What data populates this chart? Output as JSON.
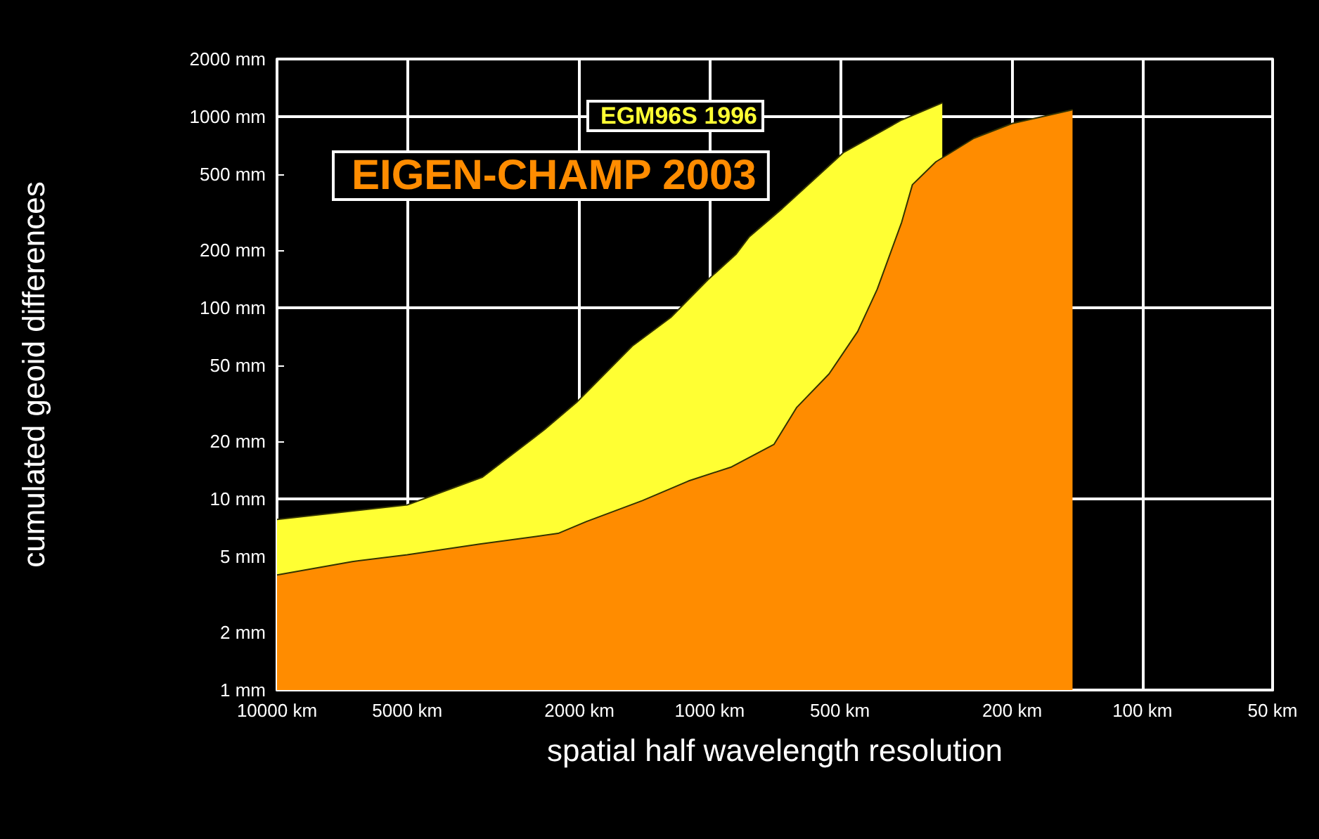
{
  "chart_data": {
    "type": "area",
    "xlabel": "spatial half wavelength resolution",
    "ylabel": "cumulated geoid differences",
    "log": "xy",
    "grid": true,
    "legend": "top left",
    "xlim": [
      10000,
      50
    ],
    "ylim": [
      1,
      2000
    ],
    "xticks": [
      {
        "value": 10000,
        "label": "10000 km"
      },
      {
        "value": 5000,
        "label": "5000 km"
      },
      {
        "value": 2000,
        "label": "2000 km"
      },
      {
        "value": 1000,
        "label": "1000 km"
      },
      {
        "value": 500,
        "label": "500 km"
      },
      {
        "value": 200,
        "label": "200 km"
      },
      {
        "value": 100,
        "label": "100 km"
      },
      {
        "value": 50,
        "label": "50 km"
      }
    ],
    "yticks": [
      {
        "value": 1,
        "label": "1 mm"
      },
      {
        "value": 2,
        "label": "2 mm"
      },
      {
        "value": 5,
        "label": "5 mm"
      },
      {
        "value": 10,
        "label": "10 mm"
      },
      {
        "value": 20,
        "label": "20 mm"
      },
      {
        "value": 50,
        "label": "50 mm"
      },
      {
        "value": 100,
        "label": "100 mm"
      },
      {
        "value": 200,
        "label": "200 mm"
      },
      {
        "value": 500,
        "label": "500 mm"
      },
      {
        "value": 1000,
        "label": "1000 mm"
      },
      {
        "value": 2000,
        "label": "2000 mm"
      }
    ],
    "series": [
      {
        "name": "EGM96S 1996",
        "color": "#ffff33",
        "x": [
          10000,
          5000,
          3350,
          2410,
          2030,
          1510,
          1230,
          1010,
          870,
          810,
          680,
          490,
          360,
          290
        ],
        "values": [
          7.8,
          9.3,
          13,
          23,
          32,
          63,
          89,
          140,
          190,
          235,
          330,
          650,
          960,
          1180
        ]
      },
      {
        "name": "EIGEN-CHAMP 2003",
        "color": "#ff8c00",
        "x": [
          10000,
          6700,
          5000,
          3400,
          2240,
          1930,
          1430,
          1120,
          890,
          710,
          630,
          530,
          455,
          410,
          360,
          340,
          300,
          245,
          200,
          145
        ],
        "values": [
          4,
          4.7,
          5.1,
          5.8,
          6.6,
          7.6,
          9.8,
          12.4,
          14.7,
          19.3,
          30,
          45,
          75,
          125,
          280,
          440,
          580,
          770,
          920,
          1085
        ]
      }
    ]
  }
}
